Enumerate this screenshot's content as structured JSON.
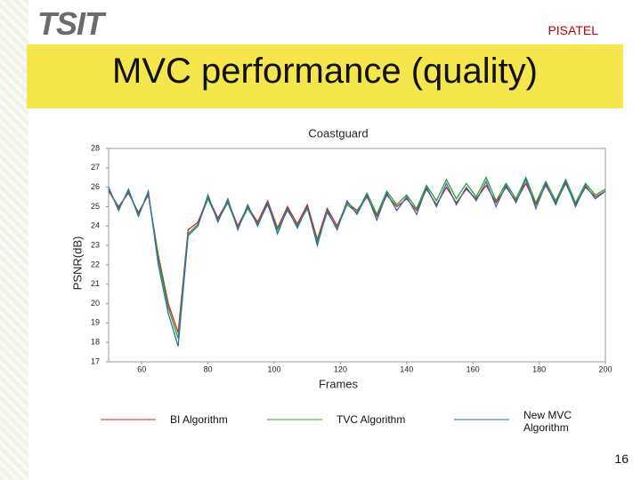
{
  "header": {
    "logo": "TSIT",
    "brand": "PISATEL",
    "title": "MVC performance (quality)"
  },
  "footer": {
    "page": "16"
  },
  "chart_data": {
    "type": "line",
    "title": "Coastguard",
    "x_label": "Frames",
    "y_label": "PSNR(dB)",
    "xlim": [
      50,
      200
    ],
    "xticks": [
      60,
      80,
      100,
      120,
      140,
      160,
      180,
      200
    ],
    "ylim": [
      17,
      28
    ],
    "yticks": [
      17,
      18,
      19,
      20,
      21,
      22,
      23,
      24,
      25,
      26,
      27,
      28
    ],
    "x": [
      50,
      53,
      56,
      59,
      62,
      65,
      68,
      71,
      74,
      77,
      80,
      83,
      86,
      89,
      92,
      95,
      98,
      101,
      104,
      107,
      110,
      113,
      116,
      119,
      122,
      125,
      128,
      131,
      134,
      137,
      140,
      143,
      146,
      149,
      152,
      155,
      158,
      161,
      164,
      167,
      170,
      173,
      176,
      179,
      182,
      185,
      188,
      191,
      194,
      197,
      200
    ],
    "series": [
      {
        "name": "BI Algorithm",
        "color": "#d62020",
        "values": [
          25.8,
          25.0,
          25.7,
          24.7,
          25.6,
          22.5,
          20.0,
          18.5,
          23.8,
          24.2,
          25.5,
          24.4,
          25.3,
          24.0,
          25.0,
          24.2,
          25.3,
          23.9,
          25.0,
          24.1,
          25.1,
          23.3,
          24.9,
          24.0,
          25.2,
          24.8,
          25.5,
          24.5,
          25.6,
          25.0,
          25.4,
          24.8,
          25.9,
          25.1,
          26.0,
          25.2,
          25.9,
          25.4,
          26.1,
          25.2,
          26.0,
          25.3,
          26.2,
          25.1,
          26.1,
          25.2,
          26.2,
          25.1,
          26.0,
          25.5,
          25.8
        ]
      },
      {
        "name": "TVC Algorithm",
        "color": "#2aa02a",
        "values": [
          25.9,
          24.9,
          25.8,
          24.6,
          25.7,
          22.3,
          19.8,
          18.2,
          23.6,
          24.1,
          25.4,
          24.3,
          25.2,
          23.9,
          24.9,
          24.1,
          25.1,
          23.8,
          24.8,
          24.0,
          24.9,
          23.2,
          24.7,
          23.9,
          25.1,
          24.7,
          25.7,
          24.6,
          25.8,
          25.1,
          25.6,
          24.9,
          26.1,
          25.3,
          26.4,
          25.4,
          26.2,
          25.5,
          26.5,
          25.3,
          26.2,
          25.4,
          26.5,
          25.2,
          26.3,
          25.3,
          26.4,
          25.2,
          26.2,
          25.6,
          25.9
        ]
      },
      {
        "name": "New MVC Algorithm",
        "color": "#2a6fb0",
        "values": [
          26.0,
          24.8,
          25.9,
          24.5,
          25.8,
          22.0,
          19.5,
          17.8,
          23.5,
          24.0,
          25.6,
          24.2,
          25.4,
          23.8,
          25.1,
          24.0,
          25.2,
          23.6,
          24.9,
          23.9,
          25.0,
          23.0,
          24.8,
          23.8,
          25.3,
          24.6,
          25.6,
          24.3,
          25.7,
          24.8,
          25.5,
          24.6,
          26.0,
          25.0,
          26.2,
          25.1,
          26.0,
          25.3,
          26.3,
          25.0,
          26.1,
          25.2,
          26.4,
          24.9,
          26.2,
          25.1,
          26.3,
          25.0,
          26.1,
          25.4,
          25.8
        ]
      }
    ]
  }
}
